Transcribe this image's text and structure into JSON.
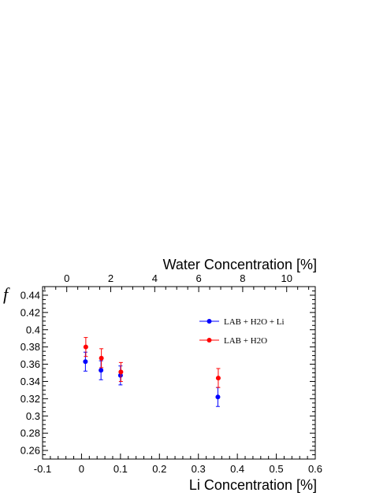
{
  "chart_data": {
    "type": "scatter",
    "xlabel": "Li Concentration [%]",
    "x2label": "Water Concentration [%]",
    "ylabel": "f",
    "xlim": [
      -0.1,
      0.6
    ],
    "x2lim": [
      -1.1,
      11.3
    ],
    "ylim": [
      0.25,
      0.45
    ],
    "xticks": [
      "-0.1",
      "0",
      "0.1",
      "0.2",
      "0.3",
      "0.4",
      "0.5",
      "0.6"
    ],
    "x2ticks": [
      "0",
      "2",
      "4",
      "6",
      "8",
      "10"
    ],
    "yticks": [
      "0.26",
      "0.28",
      "0.3",
      "0.32",
      "0.34",
      "0.36",
      "0.38",
      "0.4",
      "0.42",
      "0.44"
    ],
    "grid": false,
    "legend_position": "top-right",
    "series": [
      {
        "name": "LAB + H2O + Li",
        "color": "#0000ff",
        "x": [
          0.01,
          0.05,
          0.1,
          0.35
        ],
        "y": [
          0.363,
          0.353,
          0.347,
          0.322
        ],
        "err": [
          0.011,
          0.011,
          0.011,
          0.011
        ]
      },
      {
        "name": "LAB + H2O",
        "color": "#ff0000",
        "x": [
          0.01,
          0.05,
          0.1,
          0.35
        ],
        "y": [
          0.38,
          0.367,
          0.351,
          0.344
        ],
        "err": [
          0.011,
          0.011,
          0.011,
          0.011
        ]
      }
    ]
  }
}
